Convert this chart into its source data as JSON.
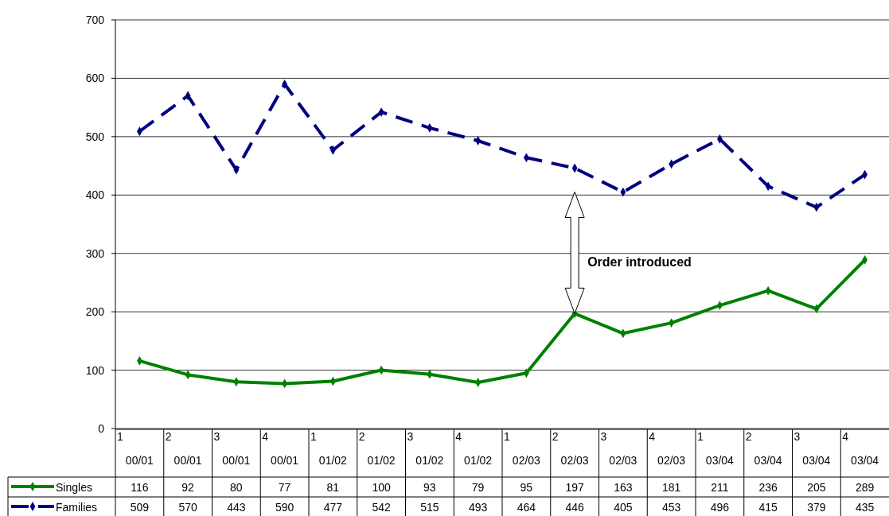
{
  "chart_data": {
    "type": "line",
    "categories": [
      "1\n00/01",
      "2\n00/01",
      "3\n00/01",
      "4\n00/01",
      "1\n01/02",
      "2\n01/02",
      "3\n01/02",
      "4\n01/02",
      "1\n02/03",
      "2\n02/03",
      "3\n02/03",
      "4\n02/03",
      "1\n03/04",
      "2\n03/04",
      "3\n03/04",
      "4\n03/04"
    ],
    "series": [
      {
        "name": "Singles",
        "color": "#008000",
        "line_style": "solid",
        "values": [
          116,
          92,
          80,
          77,
          81,
          100,
          93,
          79,
          95,
          197,
          163,
          181,
          211,
          236,
          205,
          289
        ]
      },
      {
        "name": "Families",
        "color": "#000080",
        "line_style": "dashed",
        "values": [
          509,
          570,
          443,
          590,
          477,
          542,
          515,
          493,
          464,
          446,
          405,
          453,
          496,
          415,
          379,
          435
        ]
      }
    ],
    "ylim": [
      0,
      700
    ],
    "yticks": [
      0,
      100,
      200,
      300,
      400,
      500,
      600,
      700
    ],
    "grid": "y",
    "marker": "diamond",
    "legend": "bottom",
    "data_labels": true,
    "annotations": [
      "Order introduced"
    ]
  }
}
